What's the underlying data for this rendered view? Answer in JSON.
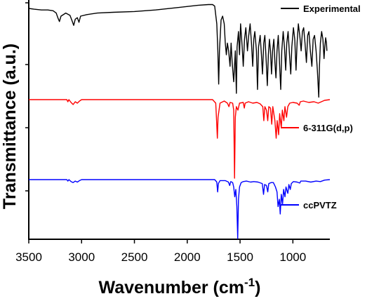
{
  "chart_data": {
    "type": "line",
    "xlabel": "Wavenumber (cm",
    "xlabel_sup": "-1",
    "xlabel_close": ")",
    "ylabel": "Transmittance (a.u.)",
    "xlim": [
      3500,
      650
    ],
    "x_reversed": true,
    "x_ticks": [
      3500,
      3000,
      2500,
      2000,
      1500,
      1000
    ],
    "x_tick_labels": [
      "3500",
      "3000",
      "2500",
      "2000",
      "1500",
      "1000"
    ],
    "grid": false,
    "legend_placement": "right, beside each trace",
    "series": [
      {
        "name": "Experimental",
        "color": "#000000",
        "baseline": 0.0,
        "points": [
          [
            3500,
            0.0
          ],
          [
            3450,
            0.01
          ],
          [
            3380,
            0.02
          ],
          [
            3320,
            0.02
          ],
          [
            3270,
            0.03
          ],
          [
            3240,
            0.06
          ],
          [
            3225,
            0.12
          ],
          [
            3210,
            0.17
          ],
          [
            3195,
            0.1
          ],
          [
            3150,
            0.06
          ],
          [
            3110,
            0.09
          ],
          [
            3090,
            0.16
          ],
          [
            3075,
            0.22
          ],
          [
            3060,
            0.14
          ],
          [
            3040,
            0.12
          ],
          [
            3025,
            0.18
          ],
          [
            3010,
            0.1
          ],
          [
            2950,
            0.08
          ],
          [
            2850,
            0.06
          ],
          [
            2700,
            0.05
          ],
          [
            2500,
            0.04
          ],
          [
            2300,
            0.02
          ],
          [
            2100,
            -0.01
          ],
          [
            1900,
            -0.04
          ],
          [
            1800,
            -0.05
          ],
          [
            1760,
            -0.05
          ],
          [
            1740,
            -0.03
          ],
          [
            1720,
            0.2
          ],
          [
            1710,
            0.55
          ],
          [
            1702,
            0.98
          ],
          [
            1695,
            0.55
          ],
          [
            1680,
            0.15
          ],
          [
            1665,
            0.1
          ],
          [
            1650,
            0.2
          ],
          [
            1640,
            0.45
          ],
          [
            1630,
            0.6
          ],
          [
            1620,
            0.45
          ],
          [
            1608,
            0.55
          ],
          [
            1595,
            0.75
          ],
          [
            1585,
            0.45
          ],
          [
            1575,
            0.7
          ],
          [
            1560,
            0.95
          ],
          [
            1545,
            0.55
          ],
          [
            1535,
            1.1
          ],
          [
            1528,
            0.5
          ],
          [
            1515,
            0.3
          ],
          [
            1505,
            0.6
          ],
          [
            1495,
            0.2
          ],
          [
            1480,
            0.5
          ],
          [
            1470,
            0.75
          ],
          [
            1458,
            0.4
          ],
          [
            1445,
            0.25
          ],
          [
            1430,
            0.55
          ],
          [
            1418,
            0.35
          ],
          [
            1405,
            0.2
          ],
          [
            1392,
            0.45
          ],
          [
            1380,
            0.75
          ],
          [
            1370,
            0.4
          ],
          [
            1360,
            0.3
          ],
          [
            1345,
            0.55
          ],
          [
            1335,
            1.05
          ],
          [
            1325,
            0.5
          ],
          [
            1310,
            0.35
          ],
          [
            1298,
            0.6
          ],
          [
            1288,
            0.85
          ],
          [
            1276,
            0.45
          ],
          [
            1265,
            0.35
          ],
          [
            1252,
            0.7
          ],
          [
            1242,
            1.0
          ],
          [
            1232,
            0.6
          ],
          [
            1222,
            0.4
          ],
          [
            1212,
            0.55
          ],
          [
            1202,
            0.85
          ],
          [
            1192,
            0.55
          ],
          [
            1180,
            0.4
          ],
          [
            1170,
            0.7
          ],
          [
            1160,
            0.9
          ],
          [
            1150,
            0.55
          ],
          [
            1138,
            0.35
          ],
          [
            1125,
            0.75
          ],
          [
            1115,
            1.05
          ],
          [
            1105,
            0.55
          ],
          [
            1092,
            0.3
          ],
          [
            1080,
            0.5
          ],
          [
            1068,
            0.8
          ],
          [
            1058,
            0.45
          ],
          [
            1045,
            0.3
          ],
          [
            1032,
            0.6
          ],
          [
            1020,
            0.85
          ],
          [
            1010,
            0.5
          ],
          [
            995,
            0.25
          ],
          [
            982,
            0.4
          ],
          [
            970,
            0.8
          ],
          [
            960,
            0.45
          ],
          [
            948,
            0.2
          ],
          [
            935,
            0.35
          ],
          [
            922,
            0.55
          ],
          [
            910,
            0.3
          ],
          [
            898,
            0.25
          ],
          [
            885,
            0.45
          ],
          [
            872,
            0.7
          ],
          [
            860,
            0.35
          ],
          [
            848,
            0.3
          ],
          [
            835,
            0.55
          ],
          [
            820,
            0.75
          ],
          [
            808,
            0.4
          ],
          [
            795,
            0.35
          ],
          [
            780,
            0.55
          ],
          [
            768,
            0.8
          ],
          [
            755,
            1.15
          ],
          [
            748,
            0.75
          ],
          [
            740,
            0.45
          ],
          [
            728,
            0.3
          ],
          [
            716,
            0.4
          ],
          [
            705,
            0.65
          ],
          [
            698,
            0.5
          ],
          [
            690,
            0.38
          ],
          [
            682,
            0.45
          ],
          [
            678,
            0.55
          ]
        ]
      },
      {
        "name": "6-311G(d,p)",
        "color": "#ff0000",
        "baseline": 0.0,
        "points": [
          [
            3500,
            0.0
          ],
          [
            3140,
            0.0
          ],
          [
            3130,
            0.03
          ],
          [
            3120,
            0.0
          ],
          [
            3100,
            0.04
          ],
          [
            3080,
            0.07
          ],
          [
            3060,
            0.03
          ],
          [
            3040,
            0.05
          ],
          [
            3020,
            0.02
          ],
          [
            3000,
            0.0
          ],
          [
            2000,
            0.0
          ],
          [
            1760,
            0.0
          ],
          [
            1730,
            0.05
          ],
          [
            1722,
            0.3
          ],
          [
            1715,
            0.55
          ],
          [
            1708,
            0.25
          ],
          [
            1690,
            0.05
          ],
          [
            1650,
            0.02
          ],
          [
            1620,
            0.05
          ],
          [
            1605,
            0.1
          ],
          [
            1595,
            0.04
          ],
          [
            1570,
            0.05
          ],
          [
            1560,
            0.15
          ],
          [
            1552,
            1.12
          ],
          [
            1545,
            0.25
          ],
          [
            1535,
            0.1
          ],
          [
            1520,
            0.15
          ],
          [
            1505,
            0.05
          ],
          [
            1470,
            0.04
          ],
          [
            1460,
            0.12
          ],
          [
            1452,
            0.05
          ],
          [
            1420,
            0.03
          ],
          [
            1380,
            0.05
          ],
          [
            1340,
            0.04
          ],
          [
            1310,
            0.06
          ],
          [
            1285,
            0.1
          ],
          [
            1275,
            0.3
          ],
          [
            1265,
            0.1
          ],
          [
            1250,
            0.15
          ],
          [
            1238,
            0.3
          ],
          [
            1228,
            0.1
          ],
          [
            1212,
            0.12
          ],
          [
            1200,
            0.35
          ],
          [
            1190,
            0.1
          ],
          [
            1170,
            0.3
          ],
          [
            1158,
            0.55
          ],
          [
            1148,
            0.3
          ],
          [
            1135,
            0.5
          ],
          [
            1125,
            0.2
          ],
          [
            1110,
            0.4
          ],
          [
            1100,
            0.15
          ],
          [
            1085,
            0.3
          ],
          [
            1075,
            0.1
          ],
          [
            1060,
            0.25
          ],
          [
            1048,
            0.1
          ],
          [
            1030,
            0.05
          ],
          [
            1000,
            0.04
          ],
          [
            960,
            0.05
          ],
          [
            940,
            0.08
          ],
          [
            930,
            0.03
          ],
          [
            900,
            0.02
          ],
          [
            850,
            0.04
          ],
          [
            800,
            0.03
          ],
          [
            760,
            0.05
          ],
          [
            700,
            0.01
          ],
          [
            650,
            0.0
          ]
        ]
      },
      {
        "name": "ccPVTZ",
        "color": "#0000ff",
        "baseline": 0.0,
        "points": [
          [
            3500,
            0.0
          ],
          [
            3140,
            0.0
          ],
          [
            3130,
            0.03
          ],
          [
            3120,
            0.0
          ],
          [
            3100,
            0.04
          ],
          [
            3080,
            0.06
          ],
          [
            3060,
            0.03
          ],
          [
            3040,
            0.05
          ],
          [
            3020,
            0.02
          ],
          [
            3000,
            0.0
          ],
          [
            2000,
            0.0
          ],
          [
            1740,
            0.0
          ],
          [
            1720,
            0.05
          ],
          [
            1712,
            0.25
          ],
          [
            1705,
            0.08
          ],
          [
            1690,
            0.02
          ],
          [
            1640,
            0.02
          ],
          [
            1610,
            0.05
          ],
          [
            1598,
            0.12
          ],
          [
            1588,
            0.04
          ],
          [
            1570,
            0.06
          ],
          [
            1560,
            0.15
          ],
          [
            1550,
            0.35
          ],
          [
            1540,
            0.2
          ],
          [
            1530,
            0.55
          ],
          [
            1522,
            1.2
          ],
          [
            1515,
            0.4
          ],
          [
            1505,
            0.15
          ],
          [
            1490,
            0.06
          ],
          [
            1470,
            0.04
          ],
          [
            1440,
            0.03
          ],
          [
            1400,
            0.05
          ],
          [
            1370,
            0.04
          ],
          [
            1330,
            0.05
          ],
          [
            1290,
            0.08
          ],
          [
            1278,
            0.3
          ],
          [
            1268,
            0.1
          ],
          [
            1250,
            0.12
          ],
          [
            1238,
            0.25
          ],
          [
            1228,
            0.08
          ],
          [
            1205,
            0.06
          ],
          [
            1185,
            0.06
          ],
          [
            1165,
            0.15
          ],
          [
            1150,
            0.25
          ],
          [
            1140,
            0.55
          ],
          [
            1128,
            0.4
          ],
          [
            1120,
            0.7
          ],
          [
            1110,
            0.3
          ],
          [
            1098,
            0.5
          ],
          [
            1088,
            0.2
          ],
          [
            1075,
            0.35
          ],
          [
            1065,
            0.15
          ],
          [
            1048,
            0.28
          ],
          [
            1038,
            0.1
          ],
          [
            1025,
            0.2
          ],
          [
            1015,
            0.08
          ],
          [
            995,
            0.04
          ],
          [
            960,
            0.05
          ],
          [
            935,
            0.07
          ],
          [
            925,
            0.03
          ],
          [
            880,
            0.03
          ],
          [
            830,
            0.05
          ],
          [
            780,
            0.03
          ],
          [
            740,
            0.04
          ],
          [
            700,
            0.01
          ],
          [
            650,
            0.0
          ]
        ]
      }
    ]
  }
}
